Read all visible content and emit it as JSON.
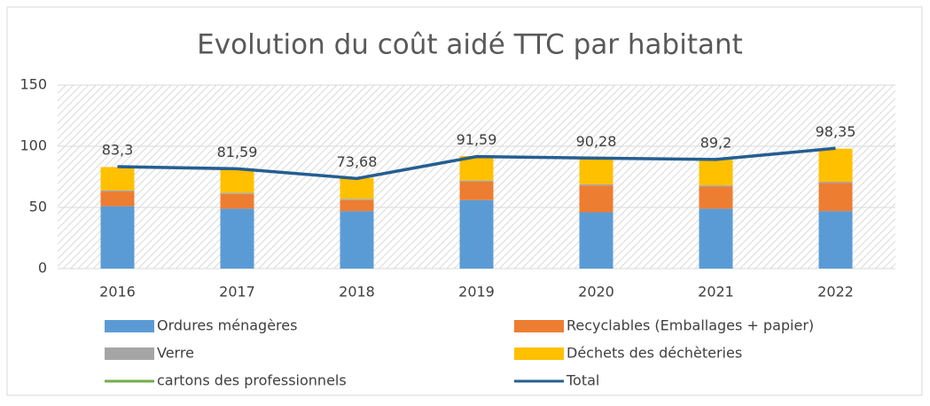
{
  "chart_data": {
    "type": "bar",
    "title": "Evolution du coût aidé TTC par habitant",
    "categories": [
      "2016",
      "2017",
      "2018",
      "2019",
      "2020",
      "2021",
      "2022"
    ],
    "series": [
      {
        "name": "Ordures ménagères",
        "type": "bar",
        "color": "#5b9bd5",
        "values": [
          51,
          49,
          47,
          56,
          46,
          49,
          47
        ]
      },
      {
        "name": "Recyclables (Emballages + papier)",
        "type": "bar",
        "color": "#ed7d31",
        "values": [
          12,
          12,
          9,
          15,
          22,
          18,
          23
        ]
      },
      {
        "name": "Verre",
        "type": "bar",
        "color": "#a5a5a5",
        "values": [
          1,
          1,
          1,
          1,
          1,
          1,
          1
        ]
      },
      {
        "name": "Déchets des déchèteries",
        "type": "bar",
        "color": "#ffc000",
        "values": [
          19,
          20,
          17,
          20,
          21,
          21,
          27
        ]
      },
      {
        "name": "cartons des professionnels",
        "type": "line",
        "color": "#70ad47",
        "values": [
          null,
          null,
          null,
          null,
          null,
          null,
          null
        ]
      },
      {
        "name": "Total",
        "type": "line",
        "color": "#255e91",
        "values": [
          83.3,
          81.59,
          73.68,
          91.59,
          90.28,
          89.2,
          98.35
        ],
        "value_labels": [
          "83,3",
          "81,59",
          "73,68",
          "91,59",
          "90,28",
          "89,2",
          "98,35"
        ]
      }
    ],
    "ylim": [
      0,
      150
    ],
    "yticks": [
      0,
      50,
      100,
      150
    ],
    "grid": true
  }
}
